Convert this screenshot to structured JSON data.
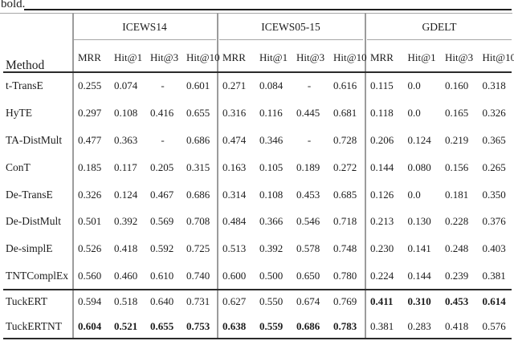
{
  "caption": "bold.",
  "colors": {
    "background": "#ffffff",
    "text": "#1c1c1c",
    "rule_dark": "#2b2b2b",
    "rule_light": "#a6a6a6"
  },
  "table": {
    "method_header": "Method",
    "metric_headers": [
      "MRR",
      "Hit@1",
      "Hit@3",
      "Hit@10"
    ],
    "groups": [
      {
        "label": "ICEWS14"
      },
      {
        "label": "ICEWS05-15"
      },
      {
        "label": "GDELT"
      }
    ],
    "rows": [
      {
        "method": "t-TransE",
        "section": "main",
        "groups": [
          {
            "bold": false,
            "values": [
              "0.255",
              "0.074",
              "-",
              "0.601"
            ]
          },
          {
            "bold": false,
            "values": [
              "0.271",
              "0.084",
              "-",
              "0.616"
            ]
          },
          {
            "bold": false,
            "values": [
              "0.115",
              "0.0",
              "0.160",
              "0.318"
            ]
          }
        ]
      },
      {
        "method": "HyTE",
        "section": "main",
        "groups": [
          {
            "bold": false,
            "values": [
              "0.297",
              "0.108",
              "0.416",
              "0.655"
            ]
          },
          {
            "bold": false,
            "values": [
              "0.316",
              "0.116",
              "0.445",
              "0.681"
            ]
          },
          {
            "bold": false,
            "values": [
              "0.118",
              "0.0",
              "0.165",
              "0.326"
            ]
          }
        ]
      },
      {
        "method": "TA-DistMult",
        "section": "main",
        "groups": [
          {
            "bold": false,
            "values": [
              "0.477",
              "0.363",
              "-",
              "0.686"
            ]
          },
          {
            "bold": false,
            "values": [
              "0.474",
              "0.346",
              "-",
              "0.728"
            ]
          },
          {
            "bold": false,
            "values": [
              "0.206",
              "0.124",
              "0.219",
              "0.365"
            ]
          }
        ]
      },
      {
        "method": "ConT",
        "section": "main",
        "groups": [
          {
            "bold": false,
            "values": [
              "0.185",
              "0.117",
              "0.205",
              "0.315"
            ]
          },
          {
            "bold": false,
            "values": [
              "0.163",
              "0.105",
              "0.189",
              "0.272"
            ]
          },
          {
            "bold": false,
            "values": [
              "0.144",
              "0.080",
              "0.156",
              "0.265"
            ]
          }
        ]
      },
      {
        "method": "De-TransE",
        "section": "main",
        "groups": [
          {
            "bold": false,
            "values": [
              "0.326",
              "0.124",
              "0.467",
              "0.686"
            ]
          },
          {
            "bold": false,
            "values": [
              "0.314",
              "0.108",
              "0.453",
              "0.685"
            ]
          },
          {
            "bold": false,
            "values": [
              "0.126",
              "0.0",
              "0.181",
              "0.350"
            ]
          }
        ]
      },
      {
        "method": "De-DistMult",
        "section": "main",
        "groups": [
          {
            "bold": false,
            "values": [
              "0.501",
              "0.392",
              "0.569",
              "0.708"
            ]
          },
          {
            "bold": false,
            "values": [
              "0.484",
              "0.366",
              "0.546",
              "0.718"
            ]
          },
          {
            "bold": false,
            "values": [
              "0.213",
              "0.130",
              "0.228",
              "0.376"
            ]
          }
        ]
      },
      {
        "method": "De-simplE",
        "section": "main",
        "groups": [
          {
            "bold": false,
            "values": [
              "0.526",
              "0.418",
              "0.592",
              "0.725"
            ]
          },
          {
            "bold": false,
            "values": [
              "0.513",
              "0.392",
              "0.578",
              "0.748"
            ]
          },
          {
            "bold": false,
            "values": [
              "0.230",
              "0.141",
              "0.248",
              "0.403"
            ]
          }
        ]
      },
      {
        "method": "TNTComplEx",
        "section": "main",
        "groups": [
          {
            "bold": false,
            "values": [
              "0.560",
              "0.460",
              "0.610",
              "0.740"
            ]
          },
          {
            "bold": false,
            "values": [
              "0.600",
              "0.500",
              "0.650",
              "0.780"
            ]
          },
          {
            "bold": false,
            "values": [
              "0.224",
              "0.144",
              "0.239",
              "0.381"
            ]
          }
        ]
      },
      {
        "method": "TuckERT",
        "section": "bottom",
        "groups": [
          {
            "bold": false,
            "values": [
              "0.594",
              "0.518",
              "0.640",
              "0.731"
            ]
          },
          {
            "bold": false,
            "values": [
              "0.627",
              "0.550",
              "0.674",
              "0.769"
            ]
          },
          {
            "bold": true,
            "values": [
              "0.411",
              "0.310",
              "0.453",
              "0.614"
            ]
          }
        ]
      },
      {
        "method": "TuckERTNT",
        "section": "bottom",
        "groups": [
          {
            "bold": true,
            "values": [
              "0.604",
              "0.521",
              "0.655",
              "0.753"
            ]
          },
          {
            "bold": true,
            "values": [
              "0.638",
              "0.559",
              "0.686",
              "0.783"
            ]
          },
          {
            "bold": false,
            "values": [
              "0.381",
              "0.283",
              "0.418",
              "0.576"
            ]
          }
        ]
      }
    ]
  }
}
